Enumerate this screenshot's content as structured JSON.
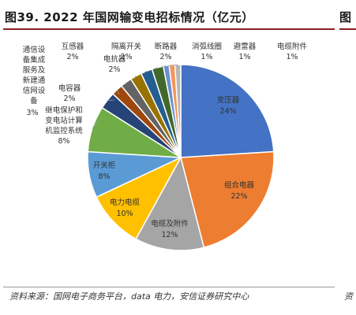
{
  "header": {
    "title": "图39. 2022 年国网输变电招标情况（亿元）",
    "side_title": "图"
  },
  "footer": {
    "source": "资料来源：国网电子商务平台，data 电力，安信证券研究中心",
    "side_source": "资"
  },
  "chart_data": {
    "type": "pie",
    "title": "2022 年国网输变电招标情况（亿元）",
    "slices": [
      {
        "label": "变压器",
        "value_label": "24%",
        "value": 24,
        "color": "#4472c4"
      },
      {
        "label": "组合电器",
        "value_label": "22%",
        "value": 22,
        "color": "#ed7d31"
      },
      {
        "label": "电缆及附件",
        "value_label": "12%",
        "value": 12,
        "color": "#a5a5a5"
      },
      {
        "label": "电力电缆",
        "value_label": "10%",
        "value": 10,
        "color": "#ffc000"
      },
      {
        "label": "开关柜",
        "value_label": "8%",
        "value": 8,
        "color": "#5b9bd5"
      },
      {
        "label": "继电保护和变电站计算机监控系统",
        "value_label": "8%",
        "value": 8,
        "color": "#70ad47"
      },
      {
        "label": "通信设备集成服务及新建通信网设备",
        "value_label": "3%",
        "value": 3,
        "color": "#264478"
      },
      {
        "label": "电容器",
        "value_label": "2%",
        "value": 2,
        "color": "#9e480e"
      },
      {
        "label": "互感器",
        "value_label": "2%",
        "value": 2,
        "color": "#636363"
      },
      {
        "label": "电抗器",
        "value_label": "2%",
        "value": 2,
        "color": "#997300"
      },
      {
        "label": "隔离开关",
        "value_label": "2%",
        "value": 2,
        "color": "#255e91"
      },
      {
        "label": "断路器",
        "value_label": "2%",
        "value": 2,
        "color": "#43682b"
      },
      {
        "label": "消弧线圈",
        "value_label": "1%",
        "value": 1,
        "color": "#698ed0"
      },
      {
        "label": "避雷器",
        "value_label": "1%",
        "value": 1,
        "color": "#f1975a"
      },
      {
        "label": "电缆附件",
        "value_label": "1%",
        "value": 1,
        "color": "#b7b7b7"
      }
    ]
  }
}
